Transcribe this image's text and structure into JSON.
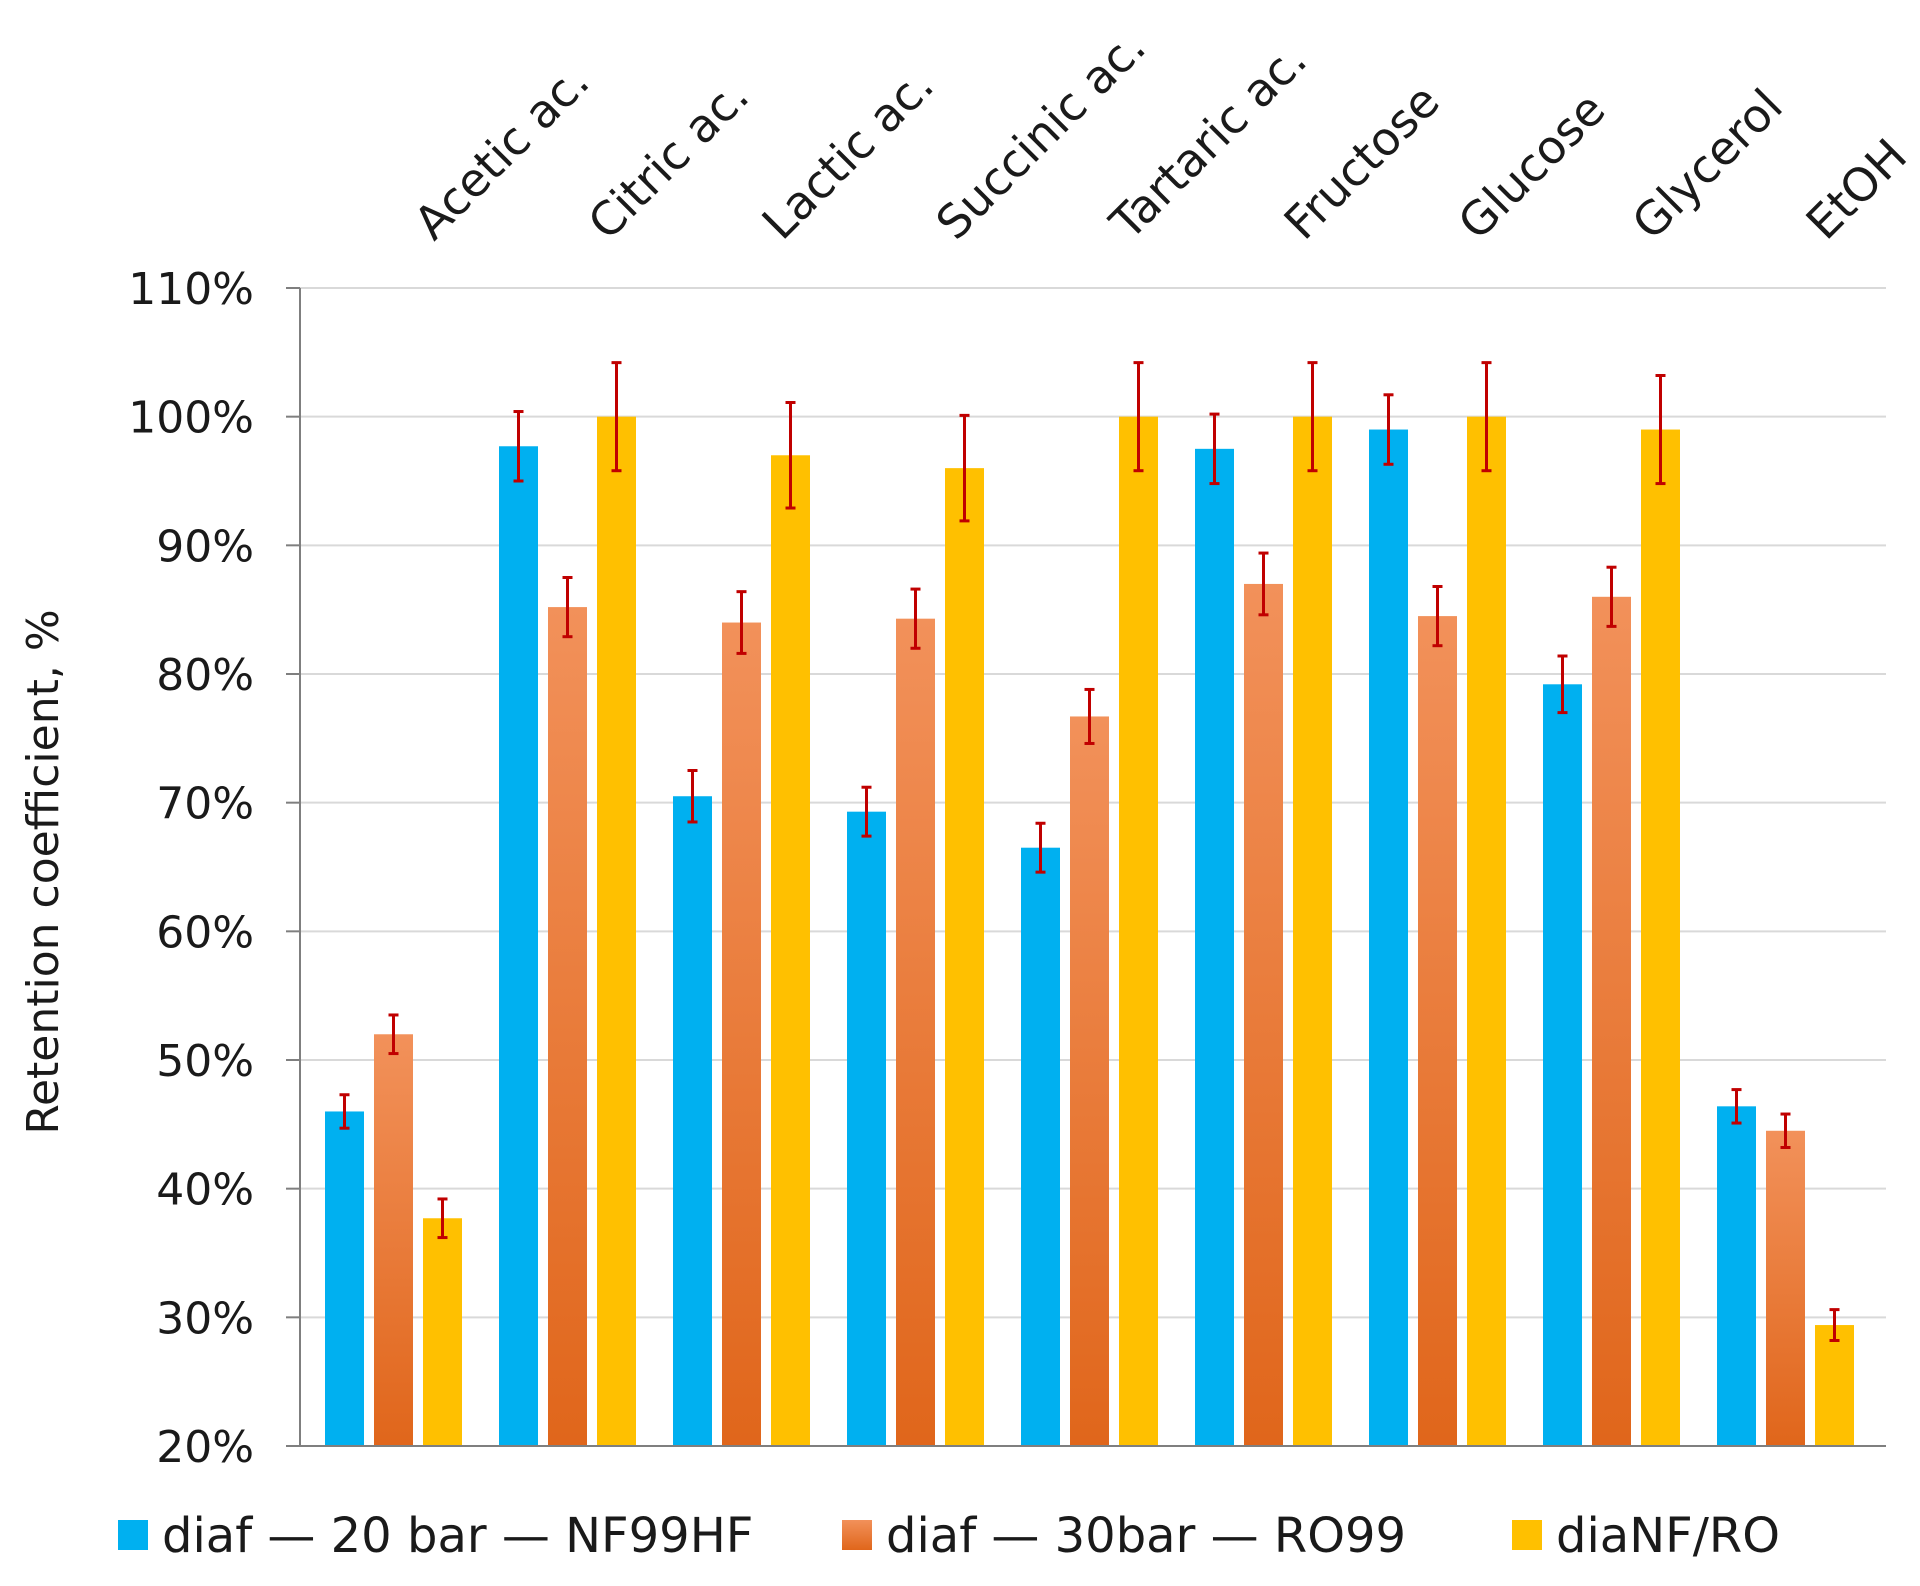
{
  "chart_data": {
    "type": "bar",
    "title": "",
    "xlabel": "",
    "ylabel": "Retention coefficient, %",
    "ylim": [
      20,
      110
    ],
    "yticks": [
      20,
      30,
      40,
      50,
      60,
      70,
      80,
      90,
      100,
      110
    ],
    "ytick_labels": [
      "20%",
      "30%",
      "40%",
      "50%",
      "60%",
      "70%",
      "80%",
      "90%",
      "100%",
      "110%"
    ],
    "grid": true,
    "legend_position": "bottom",
    "categories": [
      "Acetic ac.",
      "Citric ac.",
      "Lactic ac.",
      "Succinic ac.",
      "Tartaric ac.",
      "Fructose",
      "Glucose",
      "Glycerol",
      "EtOH"
    ],
    "series": [
      {
        "name": "diaf — 20 bar — NF99HF",
        "color": "#00b0f0",
        "values": [
          46,
          97.7,
          70.5,
          69.3,
          66.5,
          97.5,
          99,
          79.2,
          46.4
        ],
        "errors": [
          1.3,
          2.7,
          2,
          1.9,
          1.9,
          2.7,
          2.7,
          2.2,
          1.3
        ]
      },
      {
        "name": "diaf — 30bar — RO99",
        "color": "#ed7d31",
        "values": [
          52,
          85.2,
          84,
          84.3,
          76.7,
          87,
          84.5,
          86,
          44.5
        ],
        "errors": [
          1.5,
          2.3,
          2.4,
          2.3,
          2.1,
          2.4,
          2.3,
          2.3,
          1.3
        ]
      },
      {
        "name": "diaNF/RO",
        "color": "#ffc000",
        "values": [
          37.7,
          100,
          97,
          96,
          100,
          100,
          100,
          99,
          29.4
        ],
        "errors": [
          1.5,
          4.2,
          4.1,
          4.1,
          4.2,
          4.2,
          4.2,
          4.2,
          1.2
        ]
      }
    ]
  }
}
